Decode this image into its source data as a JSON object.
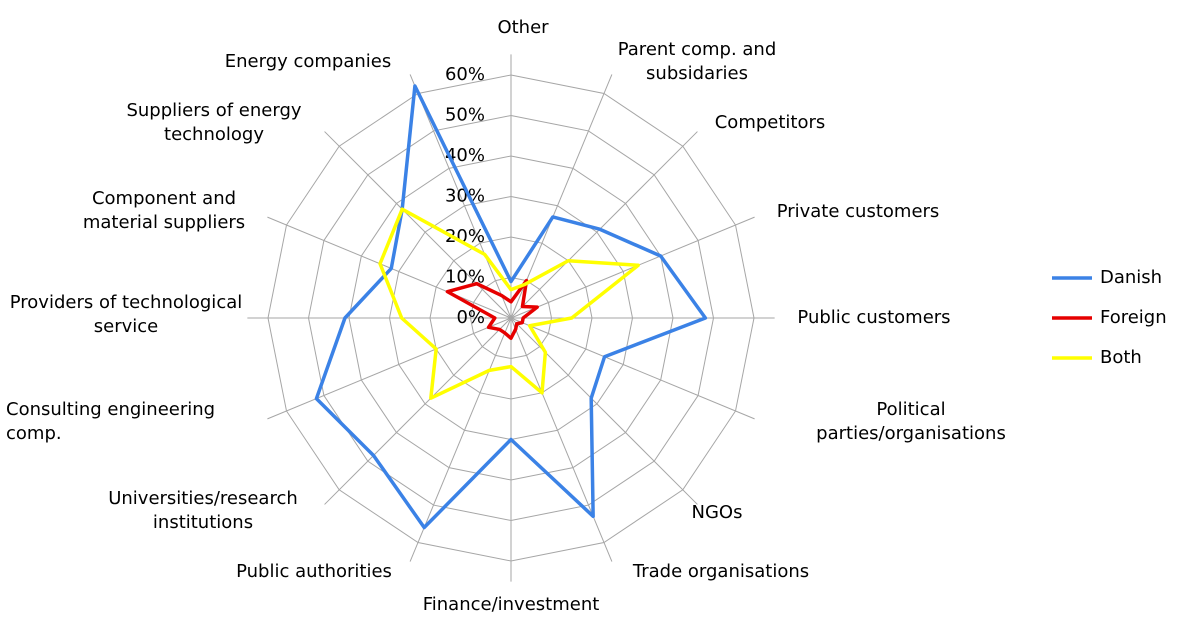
{
  "chart_data": {
    "type": "radar",
    "categories": [
      "Other",
      "Parent comp. and subsidaries",
      "Competitors",
      "Private customers",
      "Public customers",
      "Political parties/organisations",
      "NGOs",
      "Trade organisations",
      "Finance/investment",
      "Public authorities",
      "Universities/research institutions",
      "Consulting engineering comp.",
      "Providers of technological service",
      "Component and material suppliers",
      "Suppliers of energy technology",
      "Energy companies"
    ],
    "series": [
      {
        "name": "Danish",
        "color": "#3b82e6",
        "values": [
          9,
          27,
          31,
          40,
          48,
          25,
          28,
          53,
          30,
          56,
          48,
          52,
          41,
          32,
          38,
          62
        ]
      },
      {
        "name": "Foreign",
        "color": "#e60000",
        "values": [
          4,
          10,
          4,
          7,
          3,
          3,
          2,
          3,
          5,
          4,
          4,
          6,
          4,
          17,
          12,
          6
        ]
      },
      {
        "name": "Both",
        "color": "#ffff00",
        "values": [
          7,
          9,
          20,
          34,
          15,
          5,
          12,
          20,
          12,
          14,
          28,
          20,
          27,
          35,
          38,
          17
        ]
      }
    ],
    "ylim": [
      0,
      60
    ],
    "yticks": [
      {
        "value": 0,
        "label": "0%"
      },
      {
        "value": 10,
        "label": "10%"
      },
      {
        "value": 20,
        "label": "20%"
      },
      {
        "value": 30,
        "label": "30%"
      },
      {
        "value": 40,
        "label": "40%"
      },
      {
        "value": 50,
        "label": "50%"
      },
      {
        "value": 60,
        "label": "60%"
      }
    ],
    "grid": true,
    "legend": "right"
  }
}
